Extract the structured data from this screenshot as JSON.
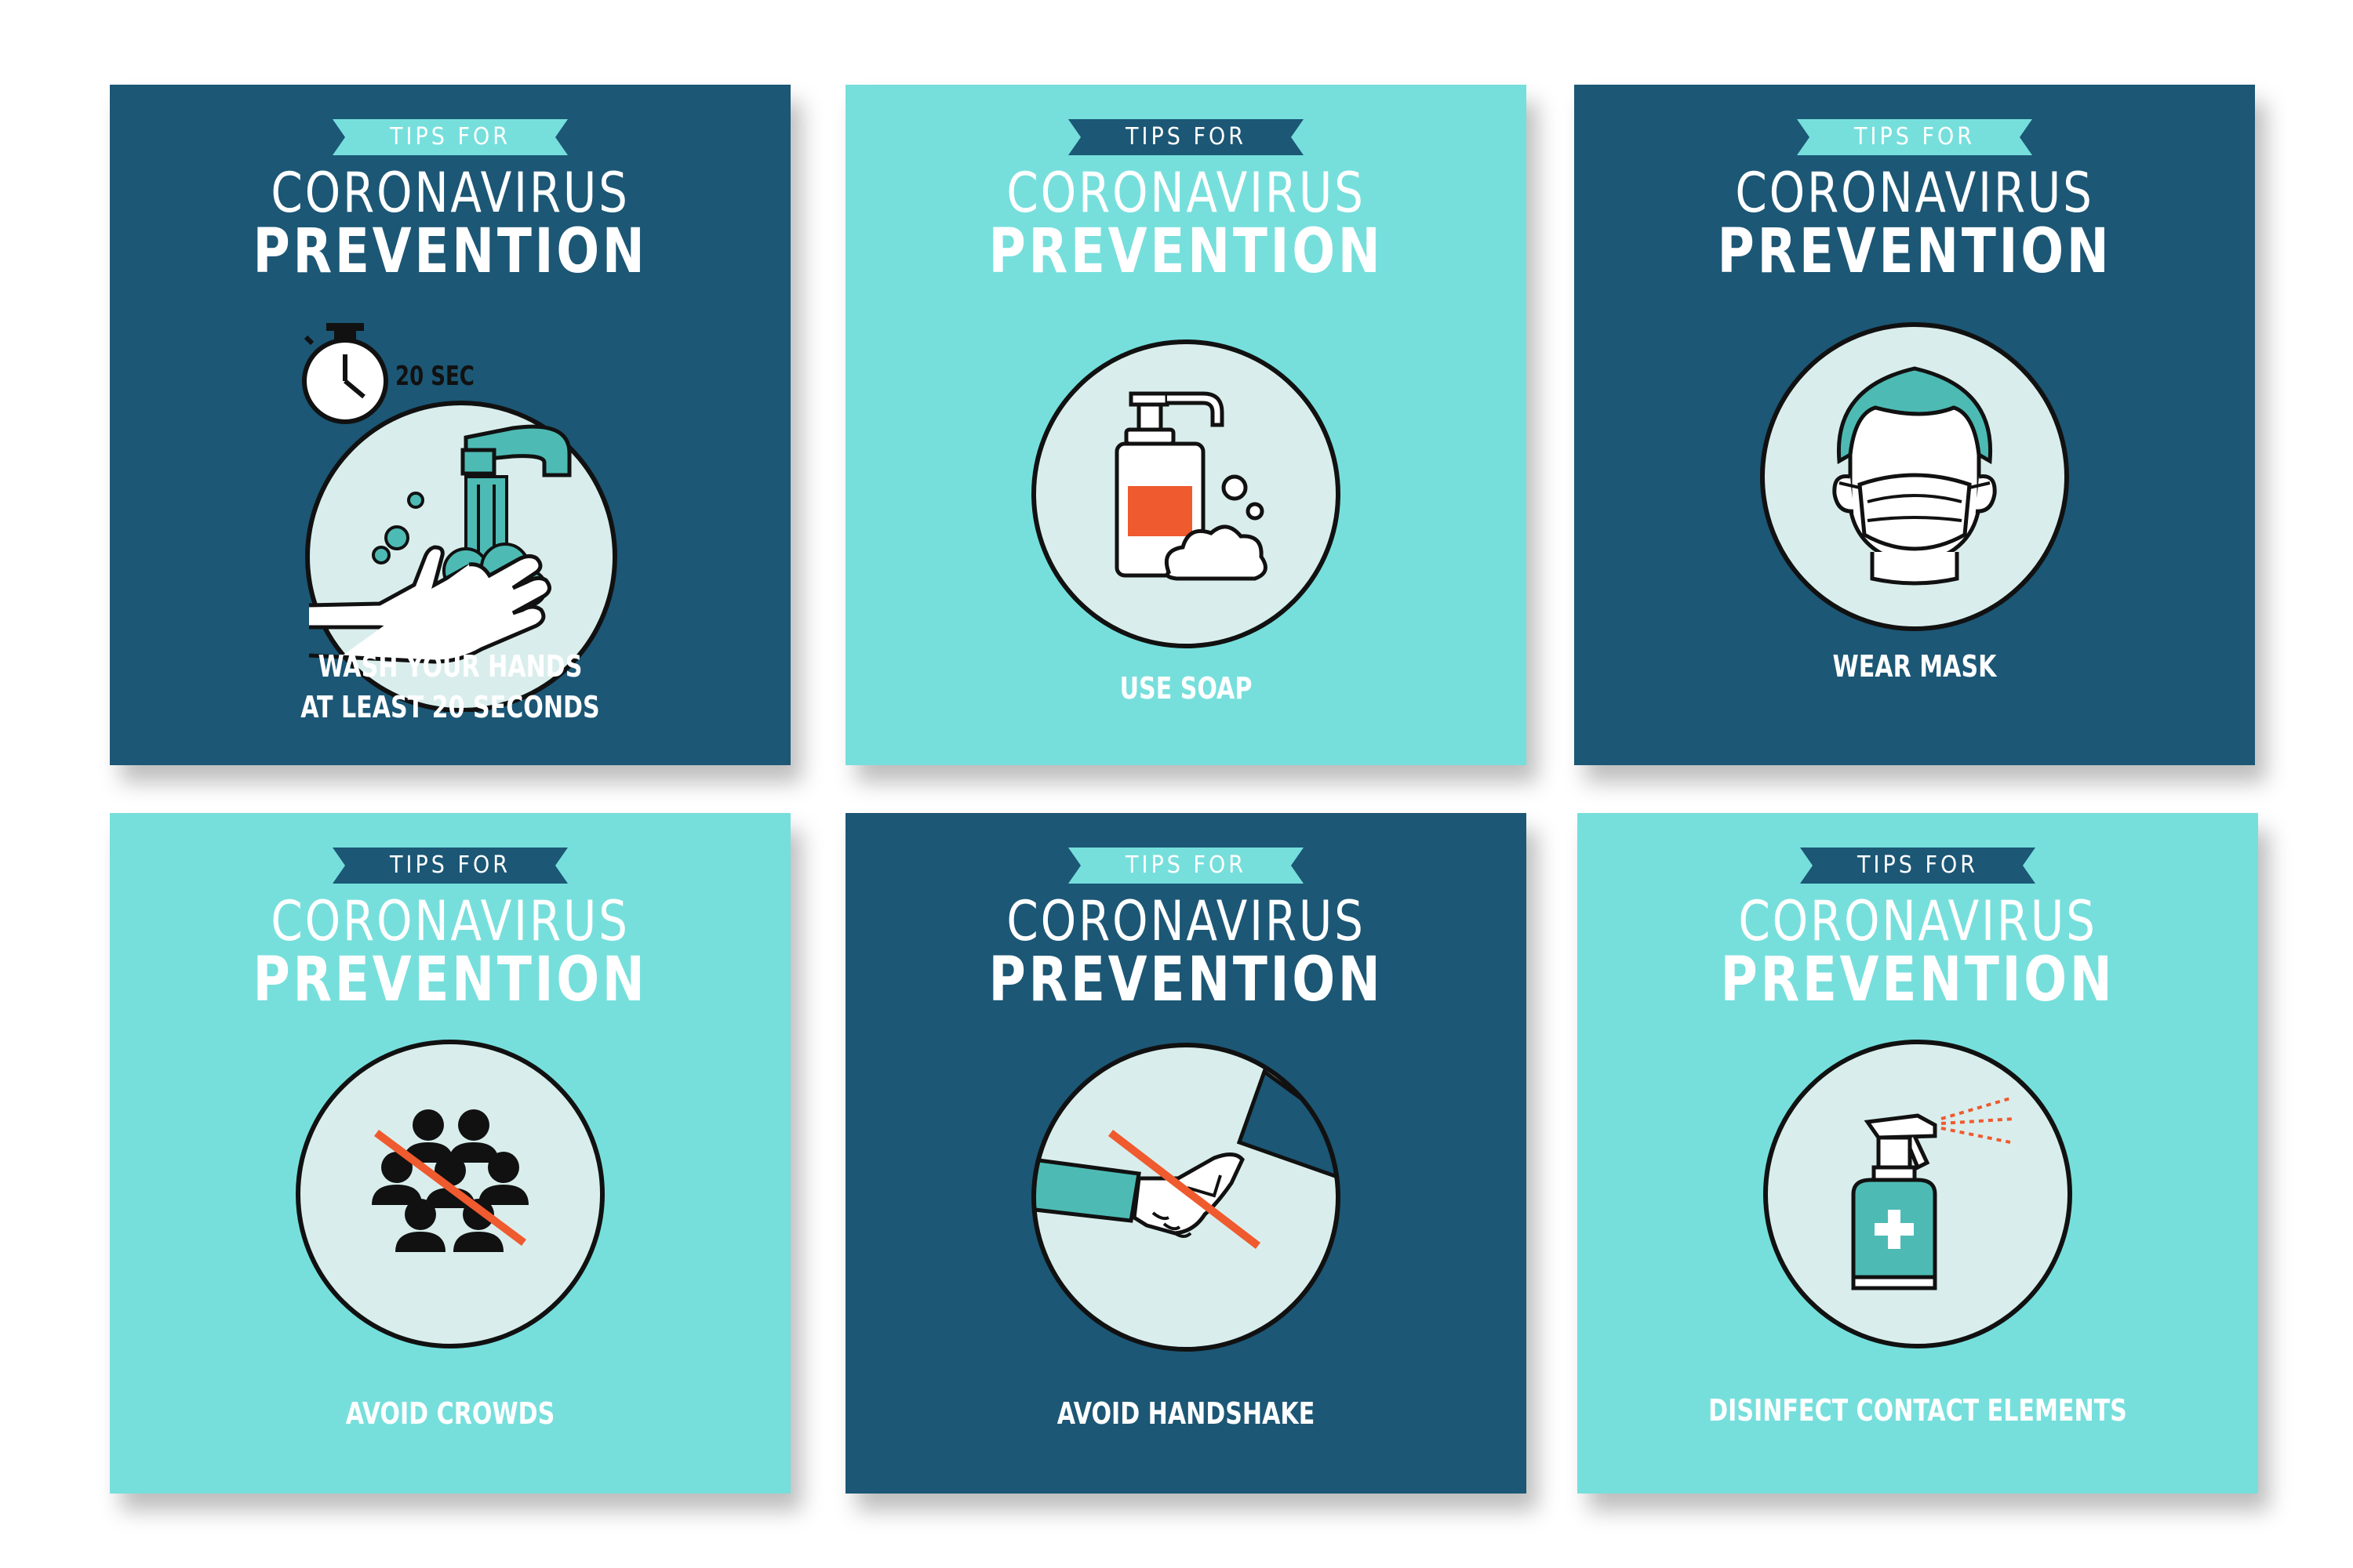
{
  "cards": [
    {
      "ribbon": "TIPS FOR",
      "title_line1": "CORONAVIRUS",
      "title_line2": "PREVENTION",
      "caption_line1": "WASH YOUR HANDS",
      "caption_line2": "AT LEAST 20 SECONDS",
      "timer_label": "20 SEC",
      "icon": "hand-washing-icon",
      "background": "#1c5775"
    },
    {
      "ribbon": "TIPS FOR",
      "title_line1": "CORONAVIRUS",
      "title_line2": "PREVENTION",
      "caption_line1": "USE SOAP",
      "icon": "soap-dispenser-icon",
      "background": "#76dfdc"
    },
    {
      "ribbon": "TIPS FOR",
      "title_line1": "CORONAVIRUS",
      "title_line2": "PREVENTION",
      "caption_line1": "WEAR MASK",
      "icon": "face-mask-icon",
      "background": "#1c5775"
    },
    {
      "ribbon": "TIPS FOR",
      "title_line1": "CORONAVIRUS",
      "title_line2": "PREVENTION",
      "caption_line1": "AVOID CROWDS",
      "icon": "no-crowds-icon",
      "background": "#76dfdc"
    },
    {
      "ribbon": "TIPS FOR",
      "title_line1": "CORONAVIRUS",
      "title_line2": "PREVENTION",
      "caption_line1": "AVOID HANDSHAKE",
      "icon": "no-handshake-icon",
      "background": "#1c5775"
    },
    {
      "ribbon": "TIPS FOR",
      "title_line1": "CORONAVIRUS",
      "title_line2": "PREVENTION",
      "caption_line1": "DISINFECT CONTACT ELEMENTS",
      "icon": "spray-bottle-icon",
      "background": "#76dfdc"
    }
  ],
  "colors": {
    "dark_blue": "#1c5775",
    "light_teal": "#76dfdc",
    "circle_fill": "#d9eeec",
    "accent_orange": "#ef5a2f",
    "icon_teal": "#4dbbb4"
  }
}
